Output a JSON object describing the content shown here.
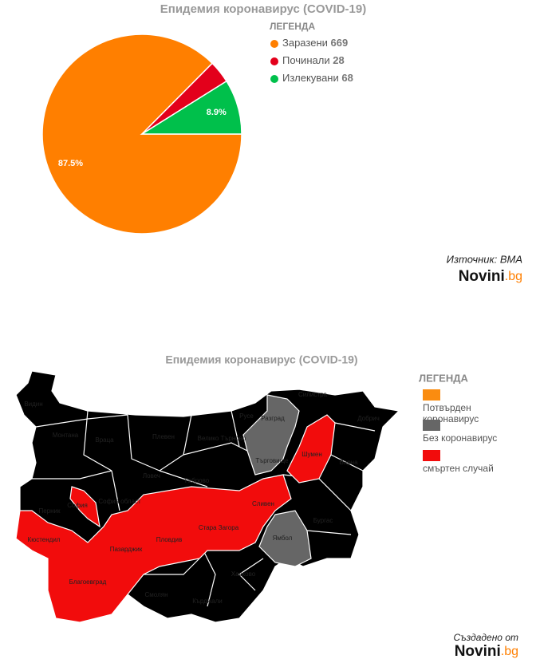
{
  "chart_data": {
    "type": "pie",
    "title": "Епидемия коронавирус (COVID-19)",
    "legend_title": "ЛЕГЕНДА",
    "legend_position": "right",
    "series": [
      {
        "name": "Заразени",
        "color": "#ff7f00",
        "values": [
          669
        ],
        "value_labels": [
          "87.5%"
        ]
      },
      {
        "name": "Починали",
        "color": "#e3001b",
        "values": [
          28
        ],
        "value_labels": [
          null
        ]
      },
      {
        "name": "Излекувани",
        "color": "#00c04b",
        "values": [
          68
        ],
        "value_labels": [
          "8.9%"
        ]
      }
    ]
  },
  "source": "Източник: ВМА",
  "logo": {
    "name": "Novini",
    "suffix": ".bg"
  },
  "map": {
    "title": "Епидемия коронавирус (COVID-19)",
    "legend_title": "ЛЕГЕНДА",
    "legend": [
      {
        "label": "Потвърден коронавирус",
        "color": "#fa8c10"
      },
      {
        "label": "Без коронавирус",
        "color": "#666666"
      },
      {
        "label": "смъртен случай",
        "color": "#f20c0c"
      }
    ],
    "regions": [
      "Видин",
      "Монтана",
      "Враца",
      "Плевен",
      "Ловеч",
      "Велико Търново",
      "Габрово",
      "Русе",
      "Разград",
      "Силистра",
      "Добрич",
      "Шумен",
      "Търговище",
      "Варна",
      "Бургас",
      "Ямбол",
      "Сливен",
      "Стара Загора",
      "Хасково",
      "Кърджали",
      "Смолян",
      "Пловдив",
      "Пазарджик",
      "Благоевград",
      "Кюстендил",
      "Перник",
      "София",
      "София област"
    ],
    "created_by": "Създадено от"
  }
}
